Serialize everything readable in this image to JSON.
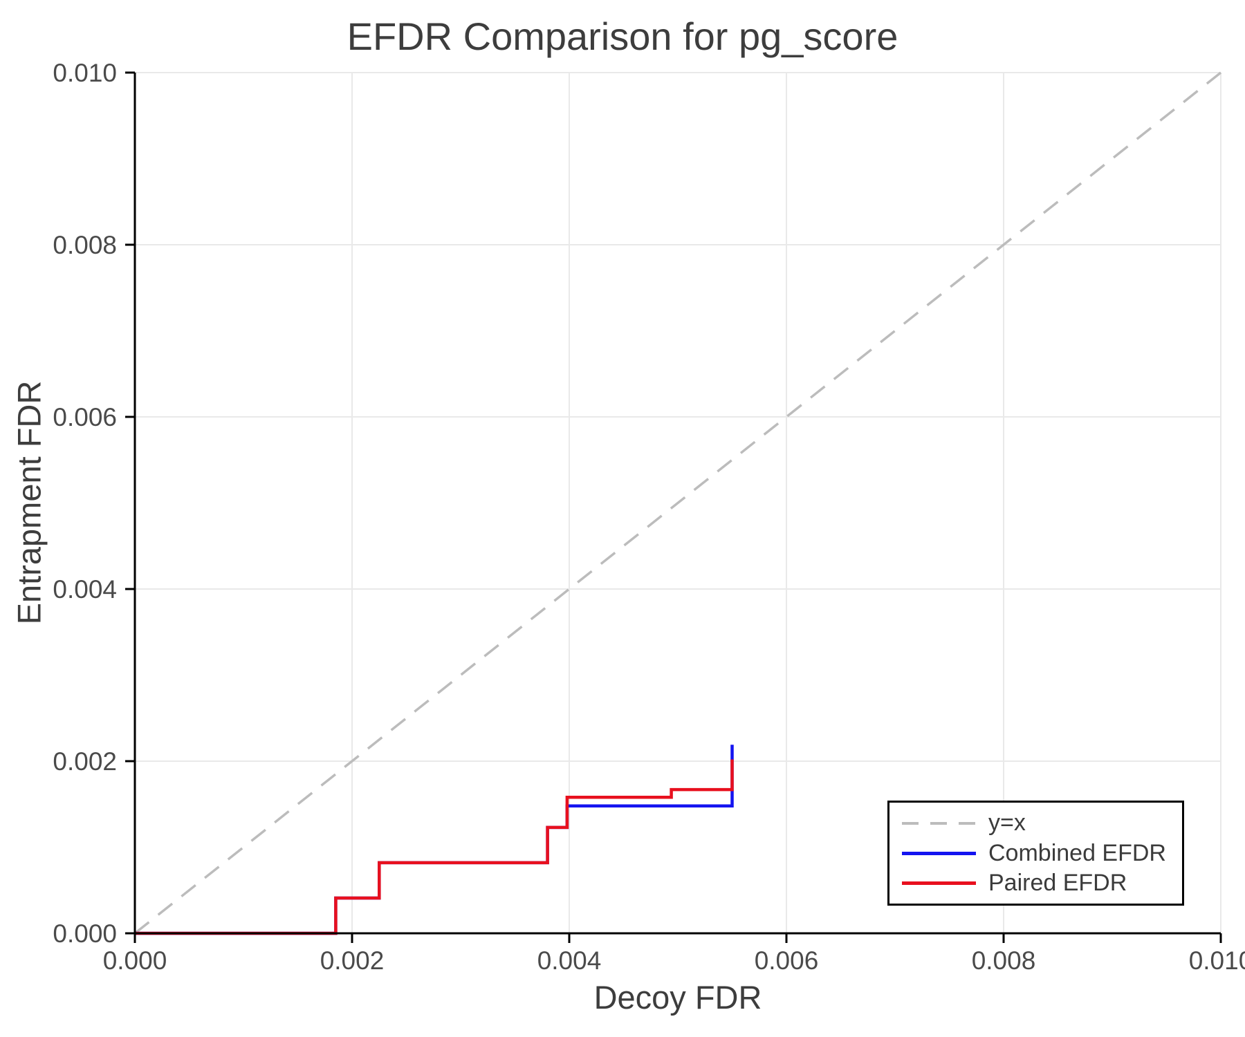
{
  "header": {
    "title": "EFDR Comparison for pg_score"
  },
  "axes": {
    "x": {
      "label": "Decoy FDR",
      "range": [
        0,
        0.01
      ],
      "tick_values": [
        0,
        0.002,
        0.004,
        0.006,
        0.008,
        0.01
      ],
      "tick_labels": [
        "0.000",
        "0.002",
        "0.004",
        "0.006",
        "0.008",
        "0.010"
      ]
    },
    "y": {
      "label": "Entrapment FDR",
      "range": [
        0,
        0.01
      ],
      "tick_values": [
        0,
        0.002,
        0.004,
        0.006,
        0.008,
        0.01
      ],
      "tick_labels": [
        "0.000",
        "0.002",
        "0.004",
        "0.006",
        "0.008",
        "0.010"
      ]
    }
  },
  "legend": {
    "items": [
      {
        "label": "y=x",
        "style": "dashed",
        "color": "#bcbcbc"
      },
      {
        "label": "Combined EFDR",
        "style": "solid",
        "color": "#1414f0"
      },
      {
        "label": "Paired EFDR",
        "style": "solid",
        "color": "#e8101e"
      }
    ]
  },
  "colors": {
    "background": "#ffffff",
    "grid": "#e9e9e9",
    "spine": "#000000",
    "tick_label": "#4a4a4a",
    "title_text": "#3d3d3d",
    "identity_line": "#bcbcbc",
    "combined_line": "#1414f0",
    "paired_line": "#e8101e",
    "legend_border": "#000000"
  },
  "chart_data": {
    "type": "line",
    "title": "EFDR Comparison for pg_score",
    "xlabel": "Decoy FDR",
    "ylabel": "Entrapment FDR",
    "xlim": [
      0,
      0.01
    ],
    "ylim": [
      0,
      0.01
    ],
    "grid": true,
    "legend_position": "lower right",
    "series": [
      {
        "name": "y=x",
        "color": "#bcbcbc",
        "dash": "dashed",
        "width": 3.5,
        "x": [
          0,
          0.01
        ],
        "y": [
          0,
          0.01
        ]
      },
      {
        "name": "Combined EFDR",
        "color": "#1414f0",
        "dash": "solid",
        "width": 4.5,
        "x": [
          0,
          0.00185,
          0.00185,
          0.00225,
          0.00225,
          0.0038,
          0.0038,
          0.00398,
          0.00398,
          0.0055,
          0.0055
        ],
        "y": [
          0,
          0,
          0.00041,
          0.00041,
          0.00082,
          0.00082,
          0.00123,
          0.00123,
          0.00148,
          0.00148,
          0.00219
        ]
      },
      {
        "name": "Paired EFDR",
        "color": "#e8101e",
        "dash": "solid",
        "width": 4.5,
        "x": [
          0,
          0.00185,
          0.00185,
          0.00225,
          0.00225,
          0.0038,
          0.0038,
          0.00398,
          0.00398,
          0.00494,
          0.00494,
          0.0055,
          0.0055
        ],
        "y": [
          0,
          0,
          0.00041,
          0.00041,
          0.00082,
          0.00082,
          0.00123,
          0.00123,
          0.00158,
          0.00158,
          0.00167,
          0.00167,
          0.00202
        ]
      }
    ]
  }
}
